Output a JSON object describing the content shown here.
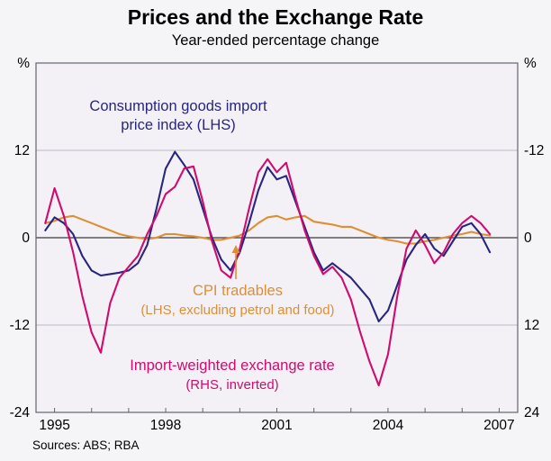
{
  "page": {
    "sources": "Sources: ABS; RBA"
  },
  "theme": {
    "page_background": "#f5f4f7",
    "plot_background": "#f3f1f6",
    "grid_color": "#b9b7c2",
    "zero_line_color": "#3a3a3a",
    "frame_color": "#66646e",
    "text_color": "#000000"
  },
  "chart_data": {
    "type": "line",
    "title": "Prices and the Exchange Rate",
    "subtitle": "Year-ended percentage change",
    "xlabel": "",
    "ylabel_left": "%",
    "ylabel_right": "%",
    "grid": true,
    "legend_position": "inline-annotations",
    "x_axis": {
      "min": 1994.5,
      "max": 2007.5,
      "tick_years": [
        1995,
        1996,
        1997,
        1998,
        1999,
        2000,
        2001,
        2002,
        2003,
        2004,
        2005,
        2006,
        2007
      ],
      "label_years": [
        1995,
        1998,
        2001,
        2004,
        2007
      ]
    },
    "y_axis_left": {
      "min": -24,
      "max": 24,
      "ticks": [
        {
          "value": 24,
          "label": "%"
        },
        {
          "value": 12,
          "label": "12"
        },
        {
          "value": 0,
          "label": "0"
        },
        {
          "value": -12,
          "label": "-12"
        },
        {
          "value": -24,
          "label": "-24"
        }
      ]
    },
    "y_axis_right": {
      "inverted": true,
      "min": -24,
      "max": 24,
      "ticks": [
        {
          "value": -24,
          "label": "%"
        },
        {
          "value": -12,
          "label": "-12"
        },
        {
          "value": 0,
          "label": "0"
        },
        {
          "value": 12,
          "label": "12"
        },
        {
          "value": 24,
          "label": "24"
        }
      ]
    },
    "x": [
      1994.75,
      1995,
      1995.25,
      1995.5,
      1995.75,
      1996,
      1996.25,
      1996.5,
      1996.75,
      1997,
      1997.25,
      1997.5,
      1997.75,
      1998,
      1998.25,
      1998.5,
      1998.75,
      1999,
      1999.25,
      1999.5,
      1999.75,
      2000,
      2000.25,
      2000.5,
      2000.75,
      2001,
      2001.25,
      2001.5,
      2001.75,
      2002,
      2002.25,
      2002.5,
      2002.75,
      2003,
      2003.25,
      2003.5,
      2003.75,
      2004,
      2004.25,
      2004.5,
      2004.75,
      2005,
      2005.25,
      2005.5,
      2005.75,
      2006,
      2006.25,
      2006.5,
      2006.75
    ],
    "series": [
      {
        "name": "CPI tradables (LHS, excluding petrol and food)",
        "axis": "LHS",
        "color": "#de8f33",
        "values": [
          2.0,
          2.3,
          2.8,
          3.0,
          2.5,
          2.0,
          1.5,
          1.0,
          0.5,
          0.2,
          0.0,
          -0.2,
          0.0,
          0.5,
          0.5,
          0.3,
          0.2,
          0.0,
          -0.3,
          -0.3,
          0.0,
          0.3,
          1.0,
          2.0,
          2.8,
          3.0,
          2.5,
          2.8,
          3.0,
          2.2,
          2.0,
          1.8,
          1.5,
          1.5,
          1.0,
          0.5,
          0.0,
          -0.3,
          -0.5,
          -0.8,
          -0.8,
          -0.5,
          -0.3,
          0.0,
          0.3,
          0.5,
          0.8,
          0.5,
          0.3
        ]
      },
      {
        "name": "Consumption goods import price index (LHS)",
        "axis": "LHS",
        "color": "#28257e",
        "values": [
          1.0,
          2.8,
          2.0,
          0.5,
          -2.5,
          -4.5,
          -5.2,
          -5.0,
          -4.8,
          -4.5,
          -3.5,
          -1.0,
          4.0,
          9.5,
          11.8,
          10.0,
          8.0,
          4.0,
          0.0,
          -3.0,
          -4.5,
          -2.0,
          2.0,
          6.5,
          9.7,
          8.0,
          8.5,
          5.0,
          1.5,
          -2.0,
          -4.5,
          -3.5,
          -4.5,
          -5.5,
          -7.0,
          -8.5,
          -11.5,
          -10.0,
          -6.5,
          -3.0,
          -1.0,
          0.5,
          -1.5,
          -2.5,
          -0.5,
          1.5,
          2.0,
          0.5,
          -2.0
        ]
      },
      {
        "name": "Import-weighted exchange rate (RHS, inverted)",
        "axis": "RHS",
        "color": "#cf0c6e",
        "values": [
          -2.0,
          -6.8,
          -3.0,
          2.0,
          8.0,
          13.0,
          15.8,
          9.0,
          5.5,
          4.0,
          2.5,
          -0.5,
          -3.0,
          -6.0,
          -7.0,
          -9.5,
          -9.8,
          -5.0,
          0.5,
          4.5,
          5.5,
          1.5,
          -4.0,
          -9.0,
          -10.8,
          -9.0,
          -10.3,
          -5.5,
          -1.0,
          2.5,
          5.0,
          4.0,
          5.5,
          8.5,
          13.0,
          17.0,
          20.3,
          16.0,
          8.0,
          1.5,
          -1.0,
          1.0,
          3.5,
          2.0,
          -0.5,
          -2.0,
          -3.0,
          -2.0,
          -0.5
        ]
      }
    ],
    "annotations": [
      {
        "lines": [
          "Consumption goods import",
          "price index (LHS)"
        ],
        "sizes": [
          16.5,
          16.5
        ],
        "color": "#28257e",
        "x": 198,
        "y": 63,
        "line_height": 21
      },
      {
        "lines": [
          "CPI tradables",
          "(LHS, excluding petrol and food)"
        ],
        "sizes": [
          16.5,
          15
        ],
        "color": "#de8f33",
        "x": 264,
        "y": 268,
        "line_height": 21
      },
      {
        "lines": [
          "Import-weighted exchange rate",
          "(RHS, inverted)"
        ],
        "sizes": [
          16.5,
          15
        ],
        "color": "#cf0c6e",
        "x": 258,
        "y": 351,
        "line_height": 21
      }
    ],
    "arrow": {
      "color": "#de8f33",
      "x": 262,
      "y_from": 250,
      "y_tip": 212
    }
  }
}
